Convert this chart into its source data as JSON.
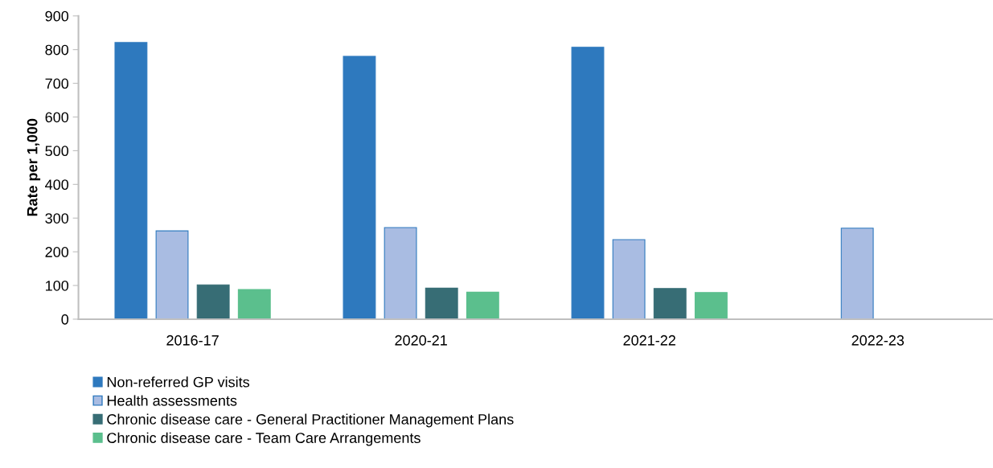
{
  "chart_data": {
    "type": "bar",
    "ylabel": "Rate per 1,000",
    "categories": [
      "2016-17",
      "2020-21",
      "2021-22",
      "2022-23"
    ],
    "series": [
      {
        "name": "Non-referred GP visits",
        "color": "#2e79be",
        "values": [
          821,
          780,
          807,
          null
        ]
      },
      {
        "name": "Health assessments",
        "color": "#a9bce2",
        "values": [
          262,
          272,
          236,
          270
        ]
      },
      {
        "name": "Chronic disease care - General Practitioner Management Plans",
        "color": "#376d75",
        "values": [
          102,
          92,
          91,
          null
        ]
      },
      {
        "name": "Chronic disease care - Team Care Arrangements",
        "color": "#5bbf8d",
        "values": [
          88,
          80,
          79,
          null
        ]
      }
    ],
    "ylim": [
      0,
      900
    ],
    "yticks": [
      0,
      100,
      200,
      300,
      400,
      500,
      600,
      700,
      800,
      900
    ],
    "grid": false,
    "legend": "bottom"
  }
}
